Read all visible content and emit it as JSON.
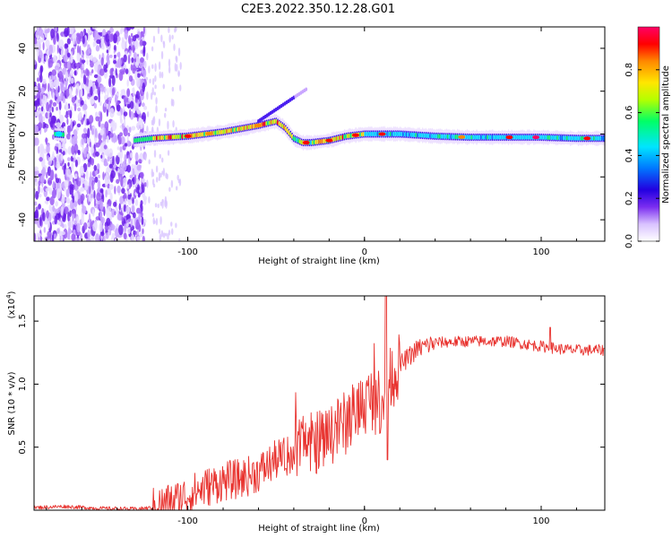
{
  "title": "C2E3.2022.350.12.28.G01",
  "colors": {
    "snr_line": "#e8322e",
    "colormap": [
      "#ffffff",
      "#e6d2ff",
      "#b98cff",
      "#7a2df0",
      "#2200e0",
      "#0077ff",
      "#00e5ff",
      "#00ff66",
      "#b4ff00",
      "#ffe600",
      "#ff8800",
      "#ff0000",
      "#ff0066"
    ]
  },
  "chart_data": [
    {
      "type": "heatmap",
      "xlabel": "Height of straight line (km)",
      "ylabel": "Frequency (Hz)",
      "xlim": [
        -187,
        136
      ],
      "ylim": [
        -50,
        50
      ],
      "x_ticks": [
        -100,
        0,
        100
      ],
      "x_tick_labels": [
        "-100",
        "0",
        "100"
      ],
      "y_ticks": [
        -40,
        -20,
        0,
        20,
        40
      ],
      "y_tick_labels": [
        "-40",
        "-20",
        "0",
        "20",
        "40"
      ],
      "ridge": {
        "x": [
          -175,
          -130,
          -120,
          -100,
          -80,
          -60,
          -50,
          -45,
          -40,
          -35,
          -30,
          -20,
          -10,
          0,
          10,
          20,
          40,
          60,
          80,
          100,
          120,
          136
        ],
        "frequency_hz": [
          0,
          -3,
          -2,
          -1,
          1,
          4,
          6,
          3,
          -2,
          -4,
          -4,
          -3,
          -1,
          0,
          0,
          0,
          -1,
          -1.5,
          -1.5,
          -1.5,
          -2,
          -2
        ]
      },
      "colorbar": {
        "label": "Normalized spectral amplitude",
        "range": [
          0,
          1
        ],
        "ticks": [
          0.0,
          0.2,
          0.4,
          0.6,
          0.8
        ],
        "tick_labels": [
          "0.0",
          "0.2",
          "0.4",
          "0.6",
          "0.8"
        ]
      }
    },
    {
      "type": "line",
      "xlabel": "Height of straight line (km)",
      "ylabel": "SNR (10 * v/v)",
      "y_multiplier": "(x10",
      "y_multiplier_exp": "4",
      "xlim": [
        -187,
        136
      ],
      "ylim": [
        0,
        17000
      ],
      "x_ticks": [
        -100,
        0,
        100
      ],
      "x_tick_labels": [
        "-100",
        "0",
        "100"
      ],
      "y_ticks": [
        5000,
        10000,
        15000
      ],
      "y_tick_labels": [
        "0.5",
        "1.0",
        "1.5"
      ],
      "series": [
        {
          "x": [
            -187,
            -170,
            -150,
            -130,
            -120,
            -110,
            -100,
            -90,
            -80,
            -70,
            -60,
            -50,
            -40,
            -30,
            -20,
            -10,
            -5,
            0,
            5,
            10,
            15,
            20,
            30,
            40,
            60,
            80,
            100,
            110,
            120,
            136
          ],
          "values": [
            200,
            300,
            150,
            100,
            200,
            600,
            1200,
            1800,
            2300,
            2500,
            3000,
            4000,
            4500,
            5200,
            6000,
            7000,
            8000,
            8500,
            9000,
            8500,
            10500,
            11500,
            12800,
            13300,
            13400,
            13400,
            13000,
            12800,
            12700,
            12700
          ]
        }
      ]
    }
  ]
}
